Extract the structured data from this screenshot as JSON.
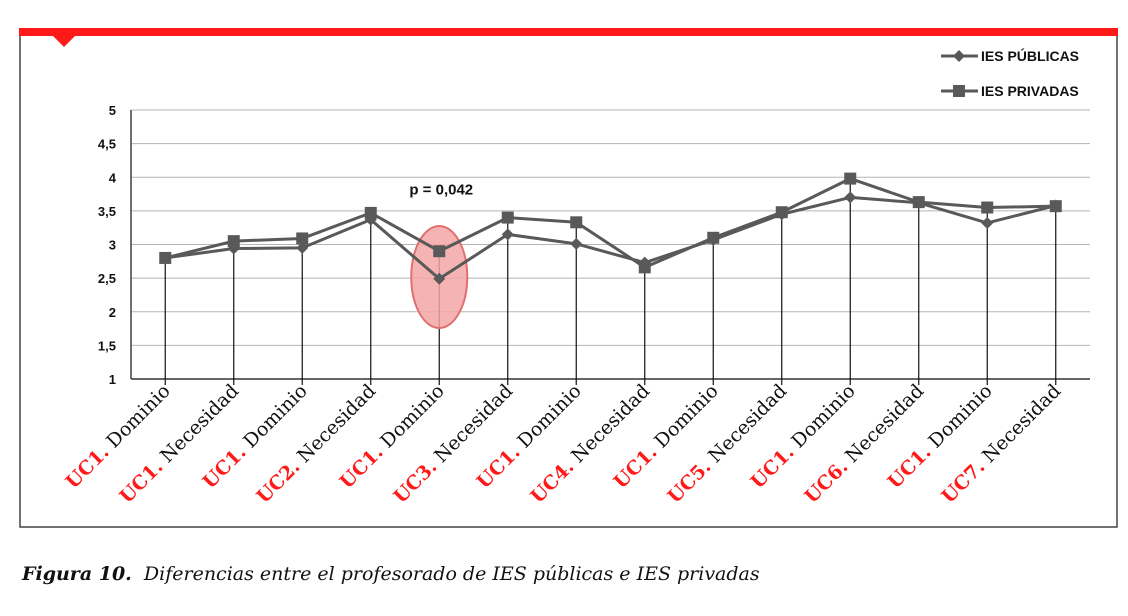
{
  "chart_data": {
    "type": "line",
    "categories": [
      {
        "uc": "UC1.",
        "tipo": "Dominio"
      },
      {
        "uc": "UC1.",
        "tipo": "Necesidad"
      },
      {
        "uc": "UC1.",
        "tipo": "Dominio"
      },
      {
        "uc": "UC2.",
        "tipo": "Necesidad"
      },
      {
        "uc": "UC1.",
        "tipo": "Dominio"
      },
      {
        "uc": "UC3.",
        "tipo": "Necesidad"
      },
      {
        "uc": "UC1.",
        "tipo": "Dominio"
      },
      {
        "uc": "UC4.",
        "tipo": "Necesidad"
      },
      {
        "uc": "UC1.",
        "tipo": "Dominio"
      },
      {
        "uc": "UC5.",
        "tipo": "Necesidad"
      },
      {
        "uc": "UC1.",
        "tipo": "Dominio"
      },
      {
        "uc": "UC6.",
        "tipo": "Necesidad"
      },
      {
        "uc": "UC1.",
        "tipo": "Dominio"
      },
      {
        "uc": "UC7.",
        "tipo": "Necesidad"
      }
    ],
    "series": [
      {
        "name": "IES PÚBLICAS",
        "marker": "diamond",
        "values": [
          2.8,
          2.94,
          2.95,
          3.37,
          2.49,
          3.15,
          3.01,
          2.73,
          3.07,
          3.45,
          3.7,
          3.62,
          3.32,
          3.58
        ]
      },
      {
        "name": "IES PRIVADAS",
        "marker": "square",
        "values": [
          2.8,
          3.05,
          3.09,
          3.47,
          2.9,
          3.4,
          3.33,
          2.66,
          3.1,
          3.48,
          3.98,
          3.63,
          3.55,
          3.57
        ]
      }
    ],
    "ylim": [
      1,
      5
    ],
    "yticks": [
      "1",
      "1,5",
      "2",
      "2,5",
      "3",
      "3,5",
      "4",
      "4,5",
      "5"
    ],
    "grid": true,
    "legend_position": "top-right",
    "annotation": {
      "text": "p = 0,042",
      "category_index": 4
    },
    "colors": {
      "line": "#595959",
      "accent": "#ff1a1a",
      "highlight": "#f4a6a6",
      "highlight_stroke": "#e07070"
    }
  },
  "caption": {
    "label": "Figura 10.",
    "text": "Diferencias entre el profesorado de IES públicas e IES privadas"
  }
}
